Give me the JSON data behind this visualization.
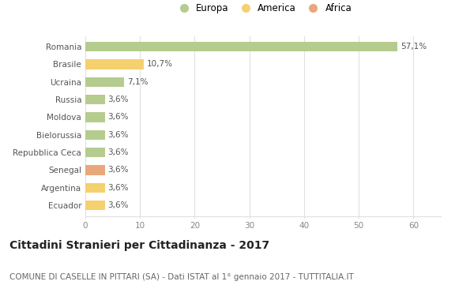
{
  "categories": [
    "Romania",
    "Brasile",
    "Ucraina",
    "Russia",
    "Moldova",
    "Bielorussia",
    "Repubblica Ceca",
    "Senegal",
    "Argentina",
    "Ecuador"
  ],
  "values": [
    57.1,
    10.7,
    7.1,
    3.6,
    3.6,
    3.6,
    3.6,
    3.6,
    3.6,
    3.6
  ],
  "labels": [
    "57,1%",
    "10,7%",
    "7,1%",
    "3,6%",
    "3,6%",
    "3,6%",
    "3,6%",
    "3,6%",
    "3,6%",
    "3,6%"
  ],
  "continents": [
    "Europa",
    "America",
    "Europa",
    "Europa",
    "Europa",
    "Europa",
    "Europa",
    "Africa",
    "America",
    "America"
  ],
  "colors": {
    "Europa": "#b5cc8e",
    "America": "#f5d06e",
    "Africa": "#e8a87c"
  },
  "xlim": [
    0,
    65
  ],
  "xticks": [
    0,
    10,
    20,
    30,
    40,
    50,
    60
  ],
  "title": "Cittadini Stranieri per Cittadinanza - 2017",
  "subtitle": "COMUNE DI CASELLE IN PITTARI (SA) - Dati ISTAT al 1° gennaio 2017 - TUTTITALIA.IT",
  "background_color": "#ffffff",
  "grid_color": "#e0e0e0",
  "bar_height": 0.55,
  "label_fontsize": 7.5,
  "title_fontsize": 10,
  "subtitle_fontsize": 7.5,
  "ytick_fontsize": 7.5,
  "xtick_fontsize": 7.5,
  "legend_fontsize": 8.5
}
